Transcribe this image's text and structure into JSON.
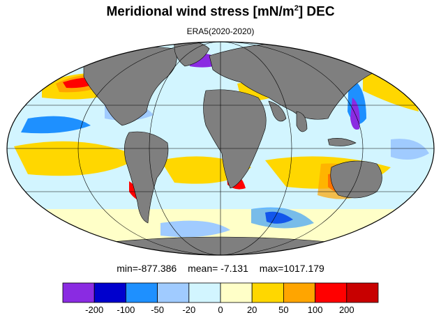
{
  "title": {
    "main": "Meridional wind stress [mN/m",
    "superscript": "2",
    "suffix": "] DEC"
  },
  "subtitle": "ERA5(2020-2020)",
  "stats": {
    "min": "min=-877.386",
    "mean": "mean=  -7.131",
    "max": "max=1017.179"
  },
  "colorbar": {
    "colors": [
      "#8a2be2",
      "#0000cd",
      "#1e90ff",
      "#a0cbff",
      "#d2f5ff",
      "#ffffc8",
      "#ffd700",
      "#ffa500",
      "#ff0000",
      "#c80000"
    ],
    "tick_labels": [
      "-200",
      "-100",
      "-50",
      "-20",
      "0",
      "20",
      "50",
      "100",
      "200"
    ]
  },
  "map_colors": {
    "ocean_base": "#d2f5ff",
    "land": "#7f7f7f",
    "outline": "#000000"
  }
}
